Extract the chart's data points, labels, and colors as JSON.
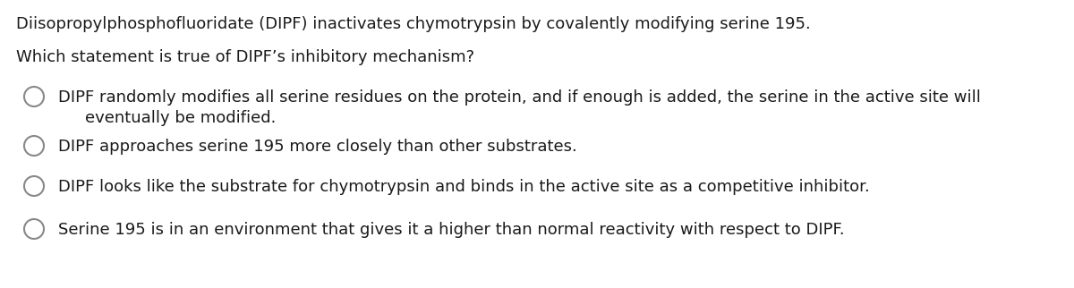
{
  "background_color": "#ffffff",
  "title_line": "Diisopropylphosphofluoridate (DIPF) inactivates chymotrypsin by covalently modifying serine 195.",
  "question_line": "Which statement is true of DIPF’s inhibitory mechanism?",
  "option1_line1": "DIPF randomly modifies all serine residues on the protein, and if enough is added, the serine in the active site will",
  "option1_line2": "eventually be modified.",
  "option2": "DIPF approaches serine 195 more closely than other substrates.",
  "option3": "DIPF looks like the substrate for chymotrypsin and binds in the active site as a competitive inhibitor.",
  "option4": "Serine 195 is in an environment that gives it a higher than normal reactivity with respect to DIPF.",
  "font_size": 13.0,
  "text_color": "#1a1a1a",
  "circle_color": "#888888",
  "fig_width": 12.0,
  "fig_height": 3.22,
  "dpi": 100
}
